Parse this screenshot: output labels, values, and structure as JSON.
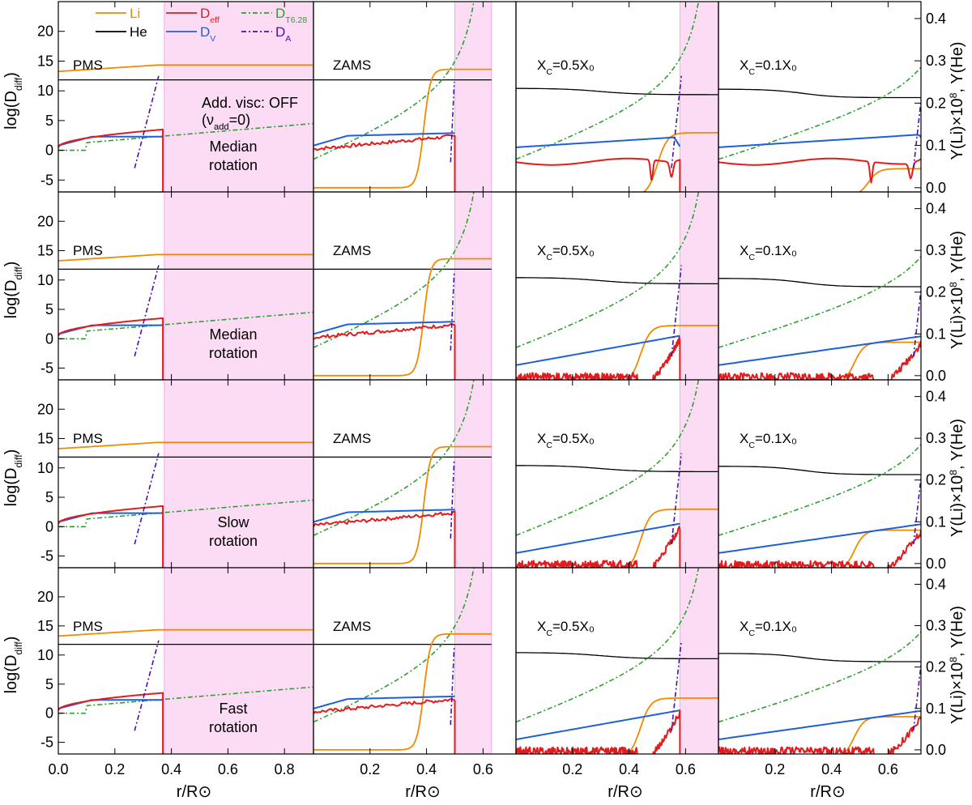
{
  "chart_data": {
    "type": "line",
    "title": "",
    "xlabel": "r/R⊙",
    "ylabel_left": "log(D",
    "ylabel_left_sub": "diff",
    "ylabel_left_close": ")",
    "ylabel_right": "Y(Li)×10",
    "ylabel_right_sup": "8",
    "ylabel_right_tail": ", Y(He)",
    "ylim_left": [
      -7,
      25
    ],
    "ylim_right": [
      -0.01,
      0.44
    ],
    "xlim": [
      0.0,
      0.9
    ],
    "yticks_left": [
      "-5",
      "0",
      "5",
      "10",
      "15",
      "20"
    ],
    "yticks_right": [
      "0.0",
      "0.1",
      "0.2",
      "0.3",
      "0.4"
    ],
    "xticks": [
      "0.0",
      "0.2",
      "0.4",
      "0.6",
      "0.8"
    ],
    "stages": [
      {
        "label": "PMS",
        "label_sub": "",
        "label_tail": "",
        "surface_r": 0.37
      },
      {
        "label": "ZAMS",
        "label_sub": "",
        "label_tail": "",
        "surface_r": 0.5
      },
      {
        "label": "X",
        "label_sub": "C",
        "label_tail": "=0.5X₀",
        "surface_r": 0.58
      },
      {
        "label": "X",
        "label_sub": "C",
        "label_tail": "=0.1X₀",
        "surface_r": 0.73
      }
    ],
    "rows": [
      {
        "note_line1": "Median",
        "note_line2": "rotation",
        "extra_line1": "Add. visc: OFF",
        "extra_line2": "(ν",
        "extra_line2_sub": "add",
        "extra_line2_tail": "=0)"
      },
      {
        "note_line1": "Median",
        "note_line2": "rotation",
        "extra_line1": "",
        "extra_line2": "",
        "extra_line2_sub": "",
        "extra_line2_tail": ""
      },
      {
        "note_line1": "Slow",
        "note_line2": "rotation",
        "extra_line1": "",
        "extra_line2": "",
        "extra_line2_sub": "",
        "extra_line2_tail": ""
      },
      {
        "note_line1": "Fast",
        "note_line2": "rotation",
        "extra_line1": "",
        "extra_line2": "",
        "extra_line2_sub": "",
        "extra_line2_tail": ""
      }
    ],
    "legend": [
      {
        "name": "Li",
        "sub": "",
        "color": "#f28a00",
        "dash": "none"
      },
      {
        "name": "He",
        "sub": "",
        "color": "#000000",
        "dash": "none"
      },
      {
        "name": "D",
        "sub": "eff",
        "color": "#e41a1c",
        "dash": "none"
      },
      {
        "name": "D",
        "sub": "V",
        "color": "#1f5fd8",
        "dash": "none"
      },
      {
        "name": "D",
        "sub": "T6.28",
        "color": "#2ca02c",
        "dash": "6,3,2,3"
      },
      {
        "name": "D",
        "sub": "A",
        "color": "#4b0db0",
        "dash": "6,3,2,3"
      }
    ],
    "colors": {
      "li": "#f28a00",
      "he": "#000000",
      "deff": "#e41a1c",
      "dv": "#1f5fd8",
      "dt": "#2ca02c",
      "da": "#4b0db0",
      "shade": "#fbdcf4",
      "shade_edge": "#f3a9e6"
    },
    "series_approx": {
      "li_y": {
        "pms": 0.29,
        "zams": 0.28,
        "xc05": [
          0.15,
          0.14,
          0.15,
          0.145
        ],
        "xc01": [
          0.065,
          0.1,
          0.1,
          0.1
        ]
      },
      "he_y": {
        "initial": 0.255,
        "center_xc05": 0.25,
        "center_xc01": 0.245,
        "envelope_xc05": 0.22,
        "envelope_xc01": 0.21
      },
      "dt_logD": {
        "center": 0.5,
        "surface_pms": 2.5,
        "surface_other": 24
      },
      "deff_surface_logD": {
        "pms": [
          3.5,
          3.7,
          3.5,
          3.6
        ],
        "zams": [
          2.5,
          2.3,
          2.2,
          2.5
        ]
      }
    }
  }
}
